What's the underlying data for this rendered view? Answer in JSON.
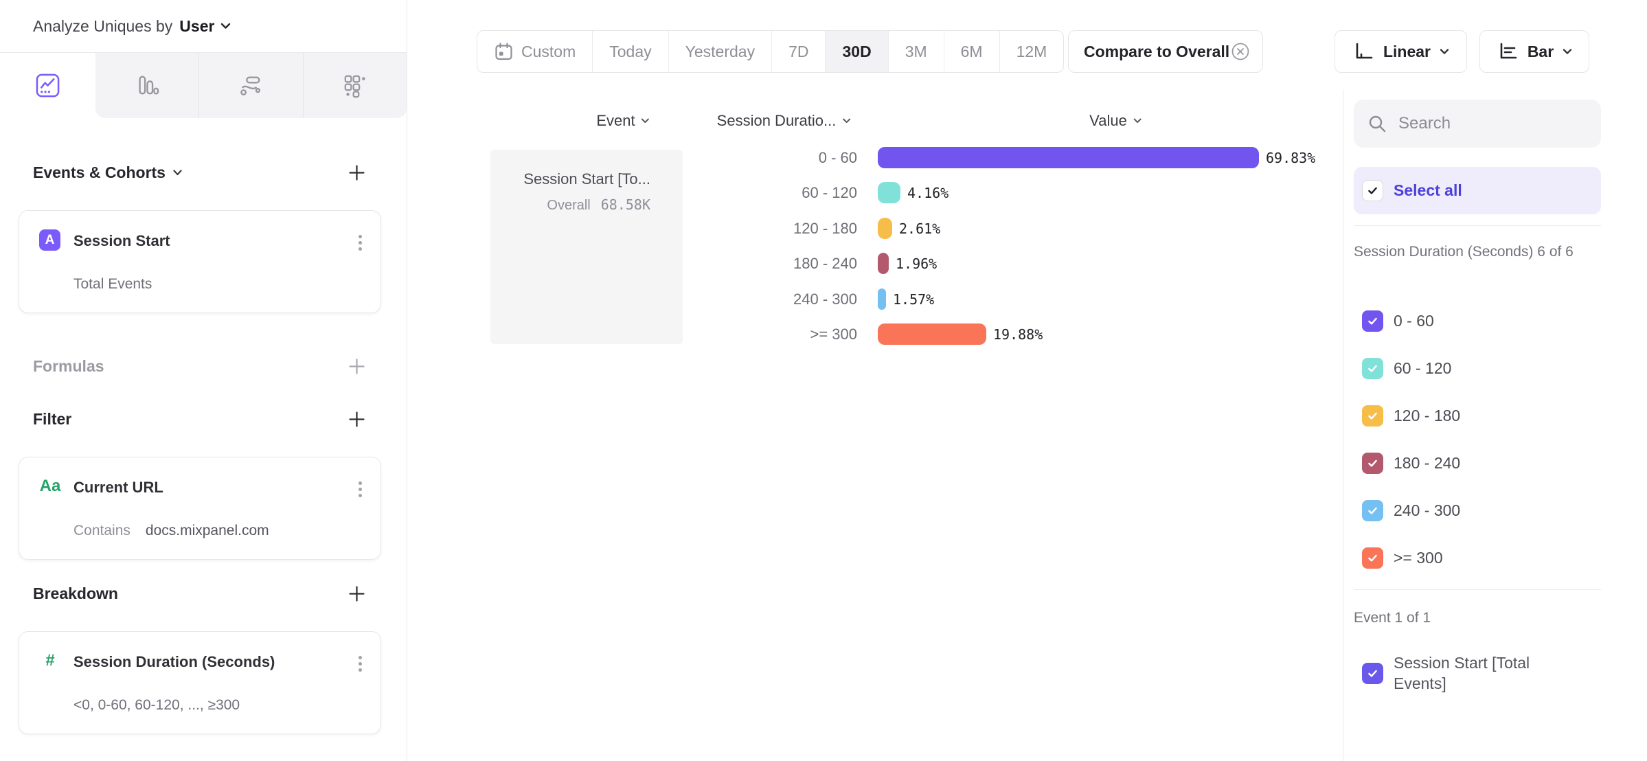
{
  "header": {
    "analyze_label": "Analyze Uniques by",
    "analyze_value": "User"
  },
  "builder": {
    "events_title": "Events & Cohorts",
    "event_card": {
      "badge": "A",
      "title": "Session Start",
      "subtitle": "Total Events"
    },
    "formulas_title": "Formulas",
    "filter_title": "Filter",
    "filter_card": {
      "icon": "Aa",
      "title": "Current URL",
      "operator": "Contains",
      "value": "docs.mixpanel.com"
    },
    "breakdown_title": "Breakdown",
    "breakdown_card": {
      "icon": "#",
      "title": "Session Duration (Seconds)",
      "subtitle": "<0, 0-60, 60-120, ..., ≥300"
    }
  },
  "toolbar": {
    "date_ranges": [
      "Custom",
      "Today",
      "Yesterday",
      "7D",
      "30D",
      "3M",
      "6M",
      "12M"
    ],
    "selected_range": "30D",
    "compare_label": "Compare to Overall",
    "scale_label": "Linear",
    "chart_type_label": "Bar"
  },
  "table": {
    "columns": [
      "Event",
      "Session Duratio...",
      "Value"
    ],
    "event_cell": {
      "title": "Session Start [To...",
      "overall_label": "Overall",
      "overall_value": "68.58K"
    }
  },
  "chart_data": {
    "type": "bar",
    "orientation": "horizontal",
    "unit": "%",
    "series_name": "Session Start [Total Events]",
    "categories": [
      "0 - 60",
      "60 - 120",
      "120 - 180",
      "180 - 240",
      "240 - 300",
      ">= 300"
    ],
    "values": [
      69.83,
      4.16,
      2.61,
      1.96,
      1.57,
      19.88
    ],
    "value_labels": [
      "69.83%",
      "4.16%",
      "2.61%",
      "1.96%",
      "1.57%",
      "19.88%"
    ],
    "colors": [
      "#7254EE",
      "#80E1D9",
      "#F6BE49",
      "#B2596E",
      "#74C0F3",
      "#FA7457"
    ],
    "overall_value": "68.58K",
    "xlim": [
      0,
      100
    ],
    "grid": false,
    "legend": "right-checkbox-panel"
  },
  "sidebar": {
    "search_placeholder": "Search",
    "select_all_label": "Select all",
    "group_label": "Session Duration (Seconds) 6 of 6",
    "items": [
      "0 - 60",
      "60 - 120",
      "120 - 180",
      "180 - 240",
      "240 - 300",
      ">= 300"
    ],
    "items_checked": [
      true,
      true,
      true,
      true,
      true,
      true
    ],
    "event_group_label": "Event 1 of 1",
    "event_label": "Session Start [Total Events]",
    "event_color": "#6A58EB",
    "accent_color": "#4C40DB"
  }
}
